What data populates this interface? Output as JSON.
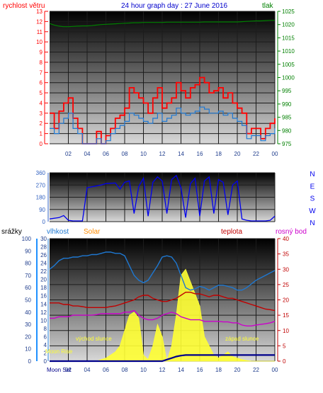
{
  "colors": {
    "background": "#ffffff",
    "plot_top": "#000000",
    "plot_bottom": "#d8d8d8",
    "grid": "#1c1c1c",
    "wind_gust": "#ff0000",
    "wind_avg": "#1e78d2",
    "pressure": "#008000",
    "wind_dir": "#0000ee",
    "humidity": "#1e78d2",
    "solar": "#ffff33",
    "solar_label": "#ff8c00",
    "temperature": "#c00000",
    "dew_point": "#cc00cc",
    "rain_axis": "#1e90ff",
    "daylight": "#00008b"
  },
  "chart_data": [
    {
      "id": "wind-pressure",
      "type": "line",
      "title": "24 hour graph day : 27 June 2016",
      "ylabel_left": "rychlost větru",
      "ylabel_right": "tlak",
      "ylim_left": [
        0,
        13
      ],
      "yticks_left": [
        0,
        1,
        2,
        3,
        4,
        5,
        6,
        7,
        8,
        9,
        10,
        11,
        12,
        13
      ],
      "ylim_right": [
        975,
        1025
      ],
      "yticks_right": [
        975,
        980,
        985,
        990,
        995,
        1000,
        1005,
        1010,
        1015,
        1020,
        1025
      ],
      "x_tick_labels": [
        "02",
        "04",
        "06",
        "08",
        "10",
        "12",
        "14",
        "16",
        "18",
        "20",
        "22",
        "00"
      ],
      "x": [
        0,
        0.5,
        1,
        1.5,
        2,
        2.5,
        3,
        3.5,
        4,
        4.5,
        5,
        5.5,
        6,
        6.5,
        7,
        7.5,
        8,
        8.5,
        9,
        9.5,
        10,
        10.5,
        11,
        11.5,
        12,
        12.5,
        13,
        13.5,
        14,
        14.5,
        15,
        15.5,
        16,
        16.5,
        17,
        17.5,
        18,
        18.5,
        19,
        19.5,
        20,
        20.5,
        21,
        21.5,
        22,
        22.5,
        23,
        23.5,
        24
      ],
      "series": [
        {
          "name": "gust",
          "color_key": "wind_gust",
          "axis": "left",
          "values": [
            3,
            1.5,
            3.2,
            4,
            4.5,
            2.5,
            1.5,
            0,
            0,
            0,
            1.2,
            0,
            0.8,
            1.5,
            2.5,
            2.8,
            3.5,
            5.5,
            5,
            4.5,
            4,
            3,
            4.5,
            5.5,
            3.5,
            4,
            4.5,
            6,
            5.2,
            4.5,
            5.5,
            5.8,
            6.5,
            6,
            5,
            5.2,
            5.5,
            4.5,
            5,
            4,
            3.5,
            3,
            1,
            1.5,
            1.5,
            0.5,
            1.5,
            2,
            2.5
          ]
        },
        {
          "name": "average",
          "color_key": "wind_avg",
          "axis": "left",
          "values": [
            1.5,
            1,
            2,
            2.5,
            3,
            1.5,
            1,
            0,
            0,
            0,
            0.5,
            0,
            0.3,
            1,
            1.5,
            1.8,
            2.2,
            3,
            2.8,
            2.5,
            2.2,
            2,
            2.5,
            3,
            2.2,
            2.5,
            2.8,
            3.5,
            3,
            2.8,
            3,
            3.2,
            3.6,
            3.4,
            3,
            3,
            3.2,
            2.8,
            3,
            2.5,
            2.2,
            1.8,
            0.5,
            0.8,
            0.8,
            0.3,
            0.8,
            1,
            1.5
          ]
        },
        {
          "name": "pressure",
          "color_key": "pressure",
          "axis": "right",
          "values": [
            1020.4,
            1019.8,
            1019.4,
            1019.2,
            1019.2,
            1019.3,
            1019.4,
            1019.5,
            1019.5,
            1019.6,
            1019.8,
            1020,
            1020.1,
            1020.2,
            1020.3,
            1020.4,
            1020.5,
            1020.6,
            1020.7,
            1020.7,
            1020.8,
            1020.8,
            1020.8,
            1020.8,
            1020.8,
            1020.9,
            1020.9,
            1020.9,
            1020.9,
            1020.9,
            1020.9,
            1020.9,
            1020.9,
            1021,
            1021,
            1021,
            1021,
            1021,
            1021,
            1021,
            1021,
            1021.1,
            1021.2,
            1021.3,
            1021.4,
            1021.4,
            1021.5,
            1021.6,
            1021.6
          ]
        }
      ]
    },
    {
      "id": "wind-direction",
      "type": "line",
      "ylim": [
        0,
        360
      ],
      "yticks": [
        0,
        90,
        180,
        270,
        360
      ],
      "compass_labels": [
        "N",
        "W",
        "S",
        "E",
        "N"
      ],
      "x_hours": [
        0,
        1,
        1.5,
        2,
        2.5,
        3.5,
        4,
        5.5,
        6,
        7,
        7.5,
        8,
        8.5,
        9,
        9.5,
        10,
        10.5,
        11,
        11.5,
        12,
        12.5,
        13,
        13.5,
        14,
        14.5,
        15,
        15.5,
        16,
        16.5,
        17,
        17.5,
        18,
        18.5,
        19,
        19.5,
        20,
        20.5,
        21,
        21.5,
        22,
        22.5,
        23,
        23.5,
        24
      ],
      "values": [
        20,
        30,
        45,
        10,
        5,
        5,
        250,
        270,
        280,
        285,
        240,
        290,
        300,
        60,
        260,
        320,
        40,
        290,
        330,
        300,
        60,
        310,
        340,
        250,
        30,
        280,
        320,
        40,
        300,
        330,
        60,
        310,
        290,
        50,
        270,
        300,
        20,
        10,
        5,
        5,
        5,
        5,
        10,
        40
      ]
    },
    {
      "id": "humidity-temperature-solar",
      "type": "line",
      "ylabel_rain": "srážky",
      "ylabel_humidity": "vlhkost",
      "ylabel_solar": "Solar",
      "ylabel_temperature": "teplota",
      "ylabel_dew": "rosný bod",
      "ylim_rain": [
        0,
        30
      ],
      "yticks_rain": [
        0,
        2,
        4,
        6,
        8,
        10,
        12,
        14,
        16,
        18,
        20,
        22,
        24,
        26,
        28,
        30
      ],
      "ylim_humidity": [
        0,
        100
      ],
      "yticks_humidity": [
        0,
        10,
        20,
        30,
        40,
        50,
        60,
        70,
        80,
        90,
        100
      ],
      "ylim_temperature": [
        0,
        40
      ],
      "yticks_temperature": [
        0,
        5,
        10,
        15,
        20,
        25,
        30,
        35,
        40
      ],
      "x_tick_labels": [
        "02",
        "04",
        "06",
        "08",
        "10",
        "12",
        "14",
        "16",
        "18",
        "20",
        "22",
        "00"
      ],
      "annotations": [
        "východ slunce",
        "západ slunce",
        "Moon Rise",
        "Moon Set"
      ],
      "x": [
        0,
        0.5,
        1,
        1.5,
        2,
        2.5,
        3,
        3.5,
        4,
        4.5,
        5,
        5.5,
        6,
        6.5,
        7,
        7.5,
        8,
        8.5,
        9,
        9.5,
        10,
        10.5,
        11,
        11.5,
        12,
        12.5,
        13,
        13.5,
        14,
        14.5,
        15,
        15.5,
        16,
        16.5,
        17,
        17.5,
        18,
        18.5,
        19,
        19.5,
        20,
        20.5,
        21,
        21.5,
        22,
        22.5,
        23,
        23.5,
        24
      ],
      "series": [
        {
          "name": "humidity",
          "color_key": "humidity",
          "axis": "humidity",
          "values": [
            75,
            78,
            82,
            84,
            84,
            85,
            85,
            86,
            86,
            87,
            87,
            88,
            89,
            89,
            88,
            88,
            86,
            78,
            70,
            66,
            64,
            66,
            72,
            78,
            85,
            86,
            85,
            80,
            70,
            60,
            58,
            59,
            61,
            60,
            58,
            60,
            62,
            62,
            61,
            60,
            58,
            58,
            60,
            63,
            66,
            68,
            70,
            72,
            74
          ]
        },
        {
          "name": "temperature",
          "color_key": "temperature",
          "axis": "temperature",
          "values": [
            19,
            19,
            19,
            18.5,
            18.5,
            18,
            18,
            17.8,
            17.5,
            17.5,
            17.5,
            17.5,
            17.5,
            17.8,
            18,
            18.5,
            19,
            19.5,
            20,
            21,
            21.5,
            21.5,
            20.5,
            20,
            19.5,
            19.5,
            20,
            20.5,
            21.5,
            22.5,
            22.5,
            22,
            22,
            21.5,
            21,
            21.5,
            21.5,
            21,
            20.5,
            20.5,
            20,
            19.5,
            19,
            18.5,
            18,
            17.5,
            17,
            16.8,
            16.5
          ]
        },
        {
          "name": "dew_point",
          "color_key": "dew_point",
          "axis": "temperature",
          "values": [
            14,
            14,
            14.5,
            14.5,
            14.5,
            15,
            15,
            15,
            15,
            15,
            15.2,
            15.5,
            15.5,
            15.5,
            15.5,
            15.5,
            16,
            16,
            16.5,
            15,
            14,
            13.5,
            13.5,
            14,
            15,
            15.5,
            16,
            15.5,
            14.5,
            14,
            13.5,
            13.5,
            13.5,
            13,
            13,
            13,
            13,
            12.8,
            12.8,
            12.5,
            12.5,
            11.8,
            11.5,
            11.5,
            11.8,
            12,
            12.2,
            12.5,
            13
          ]
        },
        {
          "name": "solar",
          "color_key": "solar",
          "axis": "temperature",
          "values": [
            0,
            0,
            0,
            0,
            0,
            0,
            0,
            0,
            0,
            0,
            0,
            0.5,
            1,
            2,
            3,
            5,
            10,
            15,
            16,
            14,
            2,
            0.5,
            5,
            12,
            8,
            0,
            5,
            15,
            28,
            30,
            26,
            22,
            18,
            8,
            5,
            2,
            1,
            2,
            3,
            1.5,
            1,
            0.5,
            0.2,
            0,
            0,
            0,
            0,
            0,
            0
          ]
        },
        {
          "name": "daylight",
          "color_key": "daylight",
          "axis": "temperature",
          "values": [
            0,
            0,
            0,
            0,
            0,
            0,
            0,
            0,
            0,
            0,
            0,
            0,
            0,
            0,
            0,
            0,
            0,
            0,
            0,
            0,
            0,
            0,
            0,
            0,
            0,
            0.5,
            1,
            1.5,
            1.8,
            2,
            2,
            2,
            2,
            2,
            2,
            2,
            2,
            2,
            2,
            2,
            2,
            2,
            2,
            2,
            2,
            2,
            2,
            2,
            2
          ]
        }
      ]
    }
  ]
}
